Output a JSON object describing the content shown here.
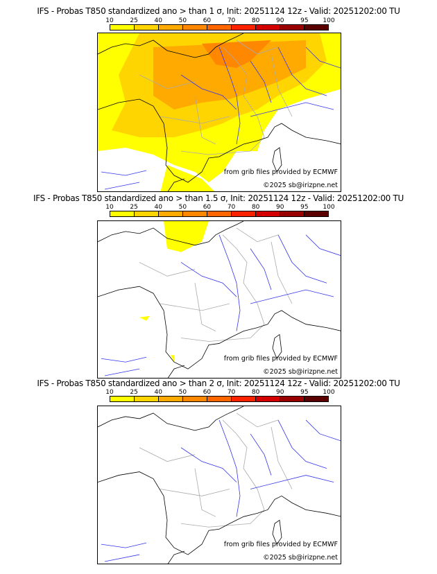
{
  "colorbar": {
    "ticks": [
      "10",
      "25",
      "40",
      "50",
      "60",
      "70",
      "80",
      "90",
      "95",
      "100"
    ],
    "colors": [
      "#ffff00",
      "#ffd500",
      "#ffaa00",
      "#ff8800",
      "#ff6600",
      "#ff2200",
      "#d40000",
      "#990000",
      "#5a0000"
    ]
  },
  "panels": [
    {
      "title": "IFS - Probas T850  standardized ano > than 1 σ, Init: 20251124 12z - Valid: 20251202:00 TU",
      "source": "from grib files provided by ECMWF",
      "copyright": "©2025 sb@irizpne.net"
    },
    {
      "title": "IFS - Probas T850  standardized ano > than 1.5 σ, Init: 20251124 12z - Valid: 20251202:00 TU",
      "source": "from grib files provided by ECMWF",
      "copyright": "©2025 sb@irizpne.net"
    },
    {
      "title": "IFS - Probas T850  standardized ano > than 2 σ, Init: 20251124 12z - Valid: 20251202:00 TU",
      "source": "from grib files provided by ECMWF",
      "copyright": "©2025 sb@irizpne.net"
    }
  ]
}
